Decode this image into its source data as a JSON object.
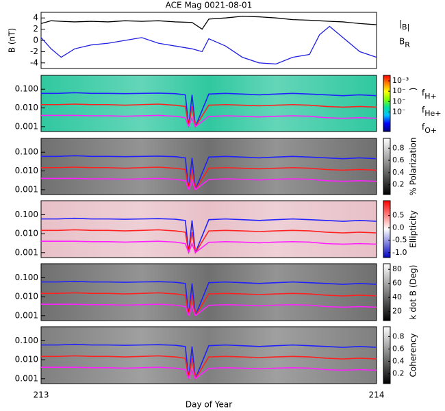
{
  "chart_data": [
    {
      "type": "line",
      "title": "ACE Mag 0021-08-01",
      "ylabel": "B (nT)",
      "xlim": [
        213,
        214
      ],
      "ylim": [
        -5,
        5
      ],
      "yticks": [
        -4,
        -2,
        0,
        2,
        4
      ],
      "x": [
        213,
        213.03,
        213.06,
        213.1,
        213.15,
        213.2,
        213.25,
        213.3,
        213.35,
        213.4,
        213.45,
        213.48,
        213.5,
        213.55,
        213.6,
        213.65,
        213.7,
        213.75,
        213.8,
        213.83,
        213.86,
        213.9,
        213.95,
        214
      ],
      "series": [
        {
          "name": "|B|",
          "color": "#000000",
          "values": [
            3,
            3.5,
            3.4,
            3.3,
            3.4,
            3.3,
            3.5,
            3.4,
            3.5,
            3.3,
            3.2,
            2,
            3.8,
            4,
            4.3,
            4.2,
            4,
            3.7,
            3.6,
            3.5,
            3.4,
            3.3,
            3,
            2.8
          ]
        },
        {
          "name": "BR",
          "color": "#2020e0",
          "values": [
            0.5,
            -1.5,
            -3,
            -1.5,
            -0.8,
            -0.5,
            0,
            0.5,
            -0.5,
            -1,
            -1.5,
            -2,
            0.3,
            -1,
            -3,
            -4,
            -4.2,
            -3,
            -2.5,
            1,
            2.5,
            0.5,
            -2,
            -3
          ]
        }
      ]
    },
    {
      "type": "spectrogram",
      "log_y": true,
      "xlim": [
        213,
        214
      ],
      "ylim": [
        0.00055,
        0.55
      ],
      "yticks": [
        {
          "value": 0.1,
          "label": "0.100"
        },
        {
          "value": 0.01,
          "label": "0.010"
        },
        {
          "value": 0.001,
          "label": "0.001"
        }
      ],
      "x": [
        213,
        213.05,
        213.1,
        213.15,
        213.2,
        213.25,
        213.3,
        213.35,
        213.4,
        213.43,
        213.44,
        213.45,
        213.46,
        213.5,
        213.55,
        213.6,
        213.65,
        213.7,
        213.75,
        213.8,
        213.85,
        213.9,
        213.95,
        214
      ],
      "series": [
        {
          "name": "fH+",
          "color": "#2020ff",
          "values": [
            0.06,
            0.06,
            0.065,
            0.06,
            0.06,
            0.058,
            0.06,
            0.062,
            0.058,
            0.05,
            0.001,
            0.05,
            0.001,
            0.055,
            0.06,
            0.055,
            0.05,
            0.055,
            0.06,
            0.055,
            0.05,
            0.045,
            0.05,
            0.045
          ]
        },
        {
          "name": "fHe+",
          "color": "#ff2020",
          "values": [
            0.015,
            0.015,
            0.016,
            0.015,
            0.015,
            0.014,
            0.015,
            0.016,
            0.014,
            0.012,
            0.001,
            0.012,
            0.001,
            0.014,
            0.015,
            0.014,
            0.013,
            0.014,
            0.015,
            0.014,
            0.012,
            0.011,
            0.012,
            0.011
          ]
        },
        {
          "name": "fO+",
          "color": "#ff20ff",
          "values": [
            0.004,
            0.004,
            0.004,
            0.0038,
            0.0038,
            0.0036,
            0.0038,
            0.004,
            0.0036,
            0.003,
            0.001,
            0.003,
            0.001,
            0.0035,
            0.0038,
            0.0036,
            0.0033,
            0.0036,
            0.0038,
            0.0036,
            0.003,
            0.0028,
            0.003,
            0.0028
          ]
        }
      ],
      "colorbar": {
        "label": ")",
        "log": true,
        "lim": [
          1.3e-08,
          0.0034
        ],
        "ticks": [
          {
            "value": 0.001,
            "label": "10⁻³"
          },
          {
            "value": 0.0001,
            "label": "10⁻"
          },
          {
            "value": 1e-05,
            "label": "10⁻"
          },
          {
            "value": 1e-06,
            "label": "10⁻"
          }
        ],
        "colors": [
          "#000080",
          "#0000ff",
          "#00c0ff",
          "#00e0a0",
          "#80ff00",
          "#ffff00",
          "#ff8000",
          "#ff0000"
        ]
      }
    },
    {
      "type": "spectrogram",
      "log_y": true,
      "ylim": [
        0.00055,
        0.55
      ],
      "yticks": [
        {
          "value": 0.1,
          "label": "0.100"
        },
        {
          "value": 0.01,
          "label": "0.010"
        },
        {
          "value": 0.001,
          "label": "0.001"
        }
      ],
      "colorbar": {
        "label": "% Polarization",
        "lim": [
          0.04,
          0.96
        ],
        "ticks": [
          0.2,
          0.4,
          0.6,
          0.8
        ],
        "colors": [
          "#000000",
          "#ffffff"
        ]
      }
    },
    {
      "type": "spectrogram",
      "log_y": true,
      "ylim": [
        0.00055,
        0.55
      ],
      "yticks": [
        {
          "value": 0.1,
          "label": "0.100"
        },
        {
          "value": 0.01,
          "label": "0.010"
        },
        {
          "value": 0.001,
          "label": "0.001"
        }
      ],
      "colorbar": {
        "label": "Ellipticity",
        "lim": [
          -1.2,
          1.1
        ],
        "ticks": [
          {
            "value": -1,
            "label": "-1.0"
          },
          -0.5,
          {
            "value": 0,
            "label": "0.0"
          },
          0.5
        ],
        "colors": [
          "#0000c0",
          "#ffffff",
          "#ff0000"
        ]
      }
    },
    {
      "type": "spectrogram",
      "log_y": true,
      "ylim": [
        0.00055,
        0.55
      ],
      "yticks": [
        {
          "value": 0.1,
          "label": "0.100"
        },
        {
          "value": 0.01,
          "label": "0.010"
        },
        {
          "value": 0.001,
          "label": "0.001"
        }
      ],
      "colorbar": {
        "label": "k dot B (Deg)",
        "lim": [
          7,
          88
        ],
        "ticks": [
          20,
          40,
          60,
          80
        ],
        "colors": [
          "#000000",
          "#ffffff"
        ]
      }
    },
    {
      "type": "spectrogram",
      "log_y": true,
      "ylim": [
        0.00055,
        0.55
      ],
      "yticks": [
        {
          "value": 0.1,
          "label": "0.100"
        },
        {
          "value": 0.01,
          "label": "0.010"
        },
        {
          "value": 0.001,
          "label": "0.001"
        }
      ],
      "colorbar": {
        "label": "Coherency",
        "lim": [
          0.04,
          0.96
        ],
        "ticks": [
          0.2,
          0.4,
          0.6,
          0.8
        ],
        "colors": [
          "#000000",
          "#ffffff"
        ]
      },
      "xlim": [
        213,
        214
      ],
      "xticks": [
        213,
        214
      ],
      "xlabel": "Day of Year"
    }
  ]
}
